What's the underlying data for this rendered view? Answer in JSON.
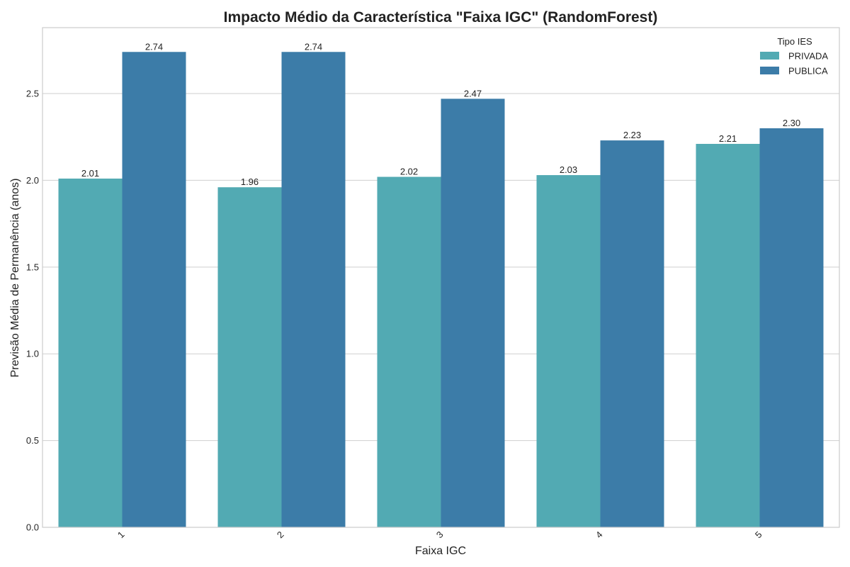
{
  "chart_data": {
    "type": "bar",
    "title": "Impacto Médio da Característica \"Faixa IGC\" (RandomForest)",
    "xlabel": "Faixa IGC",
    "ylabel": "Previsão Média de Permanência (anos)",
    "categories": [
      "1",
      "2",
      "3",
      "4",
      "5"
    ],
    "ylim": [
      0,
      2.88
    ],
    "yticks": [
      "0.0",
      "0.5",
      "1.0",
      "1.5",
      "2.0",
      "2.5"
    ],
    "grid": true,
    "legend": {
      "title": "Tipo IES",
      "placement": "top-right"
    },
    "series": [
      {
        "name": "PRIVADA",
        "color": "#52aab3",
        "values": [
          2.01,
          1.96,
          2.02,
          2.03,
          2.21
        ],
        "labels": [
          "2.01",
          "1.96",
          "2.02",
          "2.03",
          "2.21"
        ]
      },
      {
        "name": "PUBLICA",
        "color": "#3c7ca8",
        "values": [
          2.74,
          2.74,
          2.47,
          2.23,
          2.3
        ],
        "labels": [
          "2.74",
          "2.74",
          "2.47",
          "2.23",
          "2.30"
        ]
      }
    ]
  }
}
